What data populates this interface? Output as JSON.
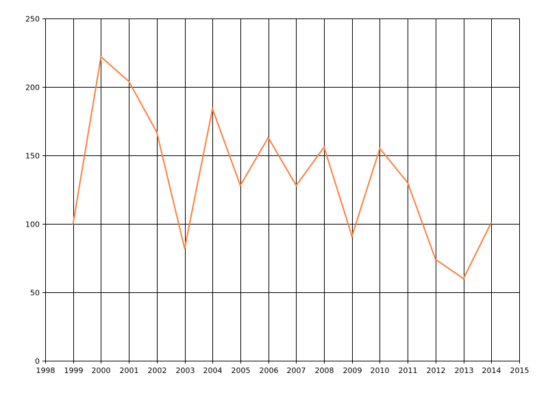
{
  "chart_data": {
    "type": "line",
    "title": "",
    "xlabel": "",
    "ylabel": "",
    "xlim": [
      1998,
      2015
    ],
    "ylim": [
      0,
      250
    ],
    "x_ticks": [
      1998,
      1999,
      2000,
      2001,
      2002,
      2003,
      2004,
      2005,
      2006,
      2007,
      2008,
      2009,
      2010,
      2011,
      2012,
      2013,
      2014,
      2015
    ],
    "y_ticks": [
      0,
      50,
      100,
      150,
      200,
      250
    ],
    "grid": true,
    "legend": "none",
    "series": [
      {
        "color": "#ff7f3f",
        "x": [
          1999,
          2000,
          2001,
          2002,
          2003,
          2004,
          2005,
          2006,
          2007,
          2008,
          2009,
          2010,
          2011,
          2012,
          2013,
          2014
        ],
        "y": [
          100,
          222,
          204,
          167,
          82,
          184,
          128,
          163,
          128,
          156,
          91,
          155,
          130,
          74,
          60,
          101
        ]
      }
    ]
  }
}
